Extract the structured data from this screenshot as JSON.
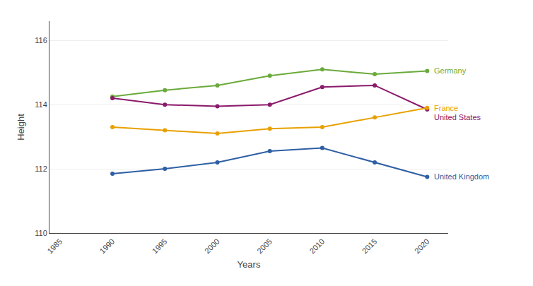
{
  "chart_data": {
    "type": "line",
    "xlabel": "Years",
    "ylabel": "Height",
    "x": [
      1990,
      1995,
      2000,
      2005,
      2010,
      2015,
      2020
    ],
    "series": [
      {
        "name": "Germany",
        "color": "#6aaa3a",
        "values": [
          114.25,
          114.45,
          114.6,
          114.9,
          115.1,
          114.95,
          115.05
        ]
      },
      {
        "name": "United States",
        "color": "#8b1a6b",
        "values": [
          114.2,
          114.0,
          113.95,
          114.0,
          114.55,
          114.6,
          113.85
        ]
      },
      {
        "name": "France",
        "color": "#e8a000",
        "values": [
          113.3,
          113.2,
          113.1,
          113.25,
          113.3,
          113.6,
          113.9
        ]
      },
      {
        "name": "United Kingdom",
        "color": "#2e5fa3",
        "values": [
          111.85,
          112.0,
          112.2,
          112.55,
          112.65,
          112.2,
          111.75
        ]
      }
    ],
    "xlim": [
      1984,
      2022
    ],
    "xticks": [
      1985,
      1990,
      1995,
      2000,
      2005,
      2010,
      2015,
      2020
    ],
    "ylim": [
      110,
      116.6
    ],
    "yticks": [
      110,
      112,
      114,
      116
    ],
    "grid": true,
    "marker": "circle"
  }
}
